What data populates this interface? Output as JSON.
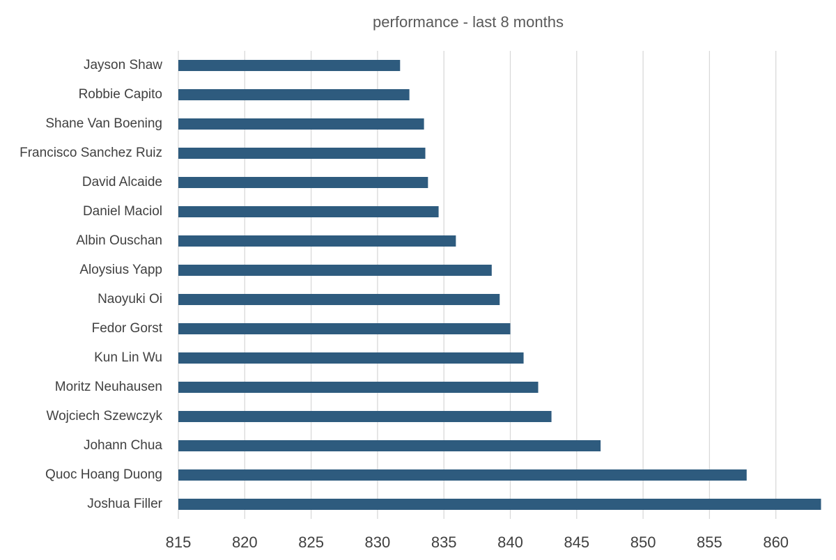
{
  "chart_data": {
    "type": "barh",
    "title": "performance - last 8 months",
    "categories": [
      "Jayson Shaw",
      "Robbie Capito",
      "Shane Van Boening",
      "Francisco Sanchez Ruiz",
      "David Alcaide",
      "Daniel Maciol",
      "Albin Ouschan",
      "Aloysius Yapp",
      "Naoyuki Oi",
      "Fedor Gorst",
      "Kun Lin Wu",
      "Moritz Neuhausen",
      "Wojciech Szewczyk",
      "Johann Chua",
      "Quoc Hoang Duong",
      "Joshua Filler"
    ],
    "values": [
      831.7,
      832.4,
      833.5,
      833.6,
      833.8,
      834.6,
      835.9,
      838.6,
      839.2,
      840.0,
      841.0,
      842.1,
      843.1,
      846.8,
      857.8,
      863.4
    ],
    "color": "#2e5b7e",
    "xlim": [
      815,
      865
    ],
    "xticks": [
      815,
      820,
      825,
      830,
      835,
      840,
      845,
      850,
      855,
      860
    ],
    "grid": true
  }
}
